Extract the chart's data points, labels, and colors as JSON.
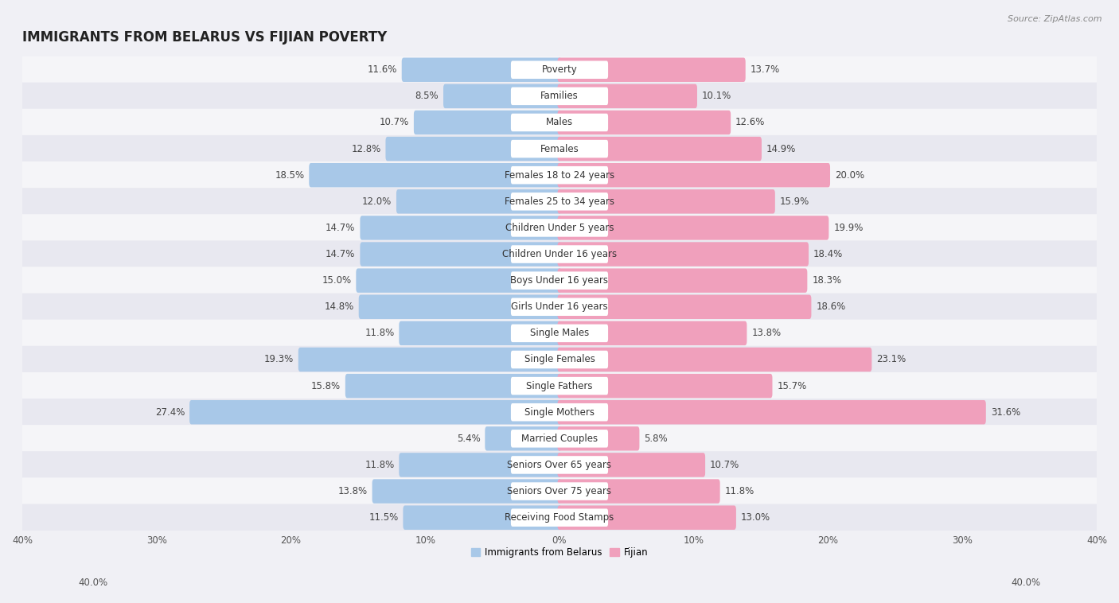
{
  "title": "IMMIGRANTS FROM BELARUS VS FIJIAN POVERTY",
  "source": "Source: ZipAtlas.com",
  "categories": [
    "Poverty",
    "Families",
    "Males",
    "Females",
    "Females 18 to 24 years",
    "Females 25 to 34 years",
    "Children Under 5 years",
    "Children Under 16 years",
    "Boys Under 16 years",
    "Girls Under 16 years",
    "Single Males",
    "Single Females",
    "Single Fathers",
    "Single Mothers",
    "Married Couples",
    "Seniors Over 65 years",
    "Seniors Over 75 years",
    "Receiving Food Stamps"
  ],
  "belarus_values": [
    11.6,
    8.5,
    10.7,
    12.8,
    18.5,
    12.0,
    14.7,
    14.7,
    15.0,
    14.8,
    11.8,
    19.3,
    15.8,
    27.4,
    5.4,
    11.8,
    13.8,
    11.5
  ],
  "fijian_values": [
    13.7,
    10.1,
    12.6,
    14.9,
    20.0,
    15.9,
    19.9,
    18.4,
    18.3,
    18.6,
    13.8,
    23.1,
    15.7,
    31.6,
    5.8,
    10.7,
    11.8,
    13.0
  ],
  "belarus_color": "#a8c8e8",
  "fijian_color": "#f0a0bc",
  "row_colors": [
    "#f5f5f8",
    "#e8e8f0"
  ],
  "background_color": "#f0f0f5",
  "xlim": 40.0,
  "bar_height": 0.62,
  "legend_label_belarus": "Immigrants from Belarus",
  "legend_label_fijian": "Fijian",
  "title_fontsize": 12,
  "source_fontsize": 8,
  "label_fontsize": 8.5,
  "value_fontsize": 8.5,
  "category_fontsize": 8.5
}
